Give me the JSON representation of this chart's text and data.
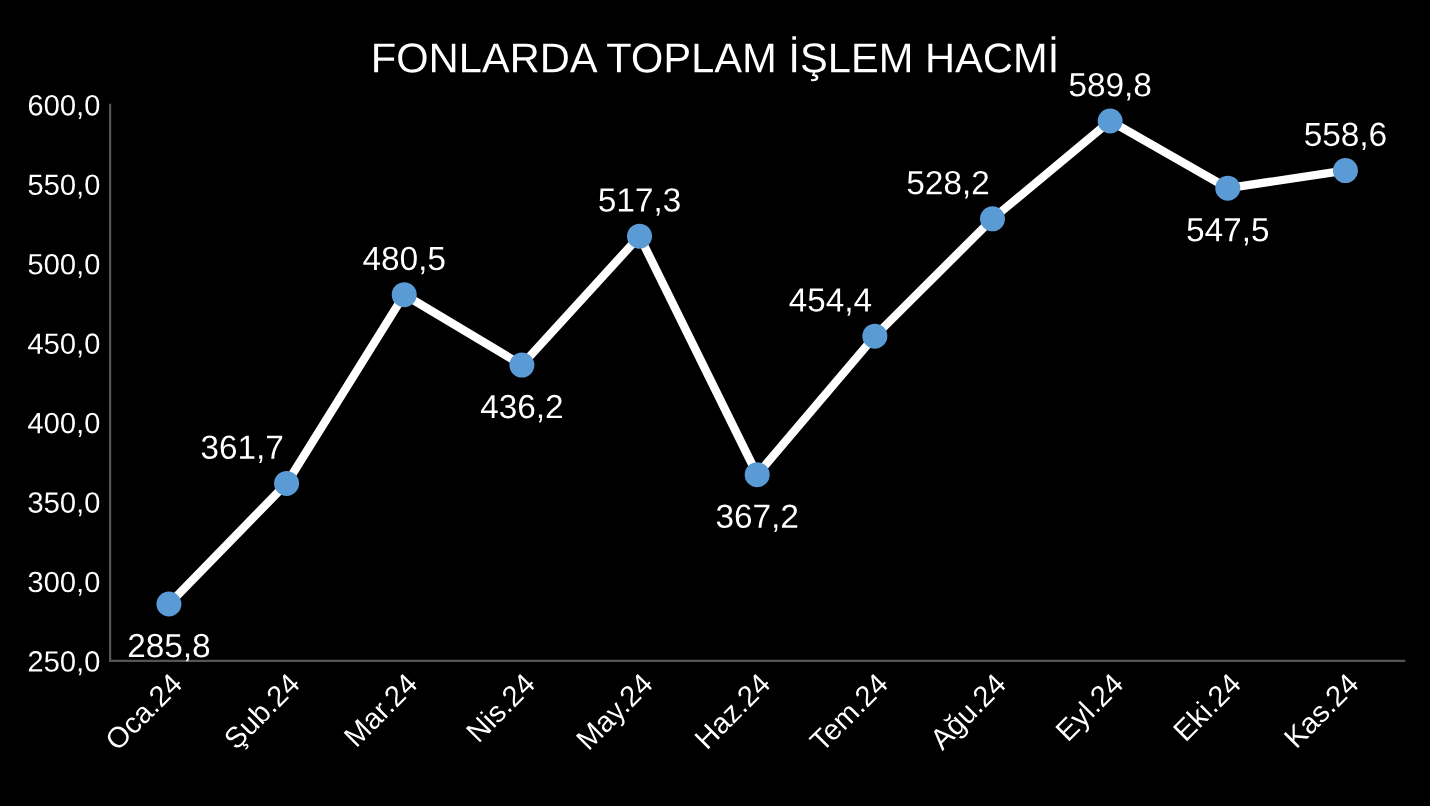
{
  "chart_data": {
    "type": "line",
    "title": "FONLARDA TOPLAM İŞLEM HACMİ",
    "categories": [
      "Oca.24",
      "Şub.24",
      "Mar.24",
      "Nis.24",
      "May.24",
      "Haz.24",
      "Tem.24",
      "Ağu.24",
      "Eyl.24",
      "Eki.24",
      "Kas.24"
    ],
    "series": [
      {
        "color": "#ffffff",
        "values": [
          285.8,
          361.7,
          480.5,
          436.2,
          517.3,
          367.2,
          454.4,
          528.2,
          589.8,
          547.5,
          558.6
        ],
        "value_labels": [
          "285,8",
          "361,7",
          "480,5",
          "436,2",
          "517,3",
          "367,2",
          "454,4",
          "528,2",
          "589,8",
          "547,5",
          "558,6"
        ]
      }
    ],
    "ylim": [
      250,
      600
    ],
    "yticks": [
      {
        "value": 250,
        "label": "250,0"
      },
      {
        "value": 300,
        "label": "300,0"
      },
      {
        "value": 350,
        "label": "350,0"
      },
      {
        "value": 400,
        "label": "400,0"
      },
      {
        "value": 450,
        "label": "450,0"
      },
      {
        "value": 500,
        "label": "500,0"
      },
      {
        "value": 550,
        "label": "550,0"
      },
      {
        "value": 600,
        "label": "600,0"
      }
    ],
    "marker": "circle",
    "line_style": "solid",
    "grid": false,
    "legend": false
  }
}
